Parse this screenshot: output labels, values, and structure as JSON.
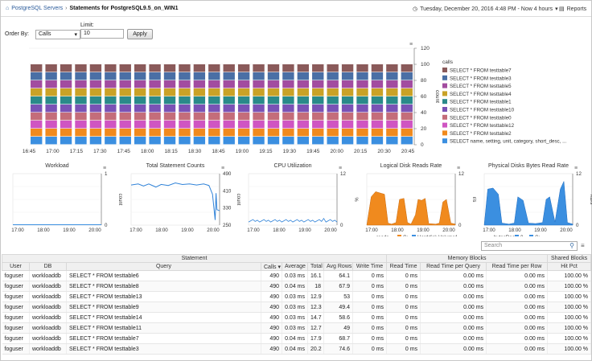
{
  "breadcrumb": {
    "root": "PostgreSQL Servers",
    "separator": "›",
    "current": "Statements for PostgreSQL9.5_on_WIN1"
  },
  "time_range": {
    "text": "Tuesday, December 20, 2016 4:48 PM - Now 4 hours"
  },
  "reports": {
    "label": "Reports"
  },
  "filter": {
    "order_by_label": "Order By:",
    "order_by_value": "Calls",
    "limit_label": "Limit:",
    "limit_value": "10",
    "apply_label": "Apply"
  },
  "search": {
    "placeholder": "Search"
  },
  "colors": {
    "series": [
      "#8a5a5a",
      "#4a6fa5",
      "#a24ca0",
      "#c9a227",
      "#2a8a8a",
      "#7a52b5",
      "#c46d7a",
      "#cf55c2",
      "#f08a1e",
      "#3b8fe0"
    ]
  },
  "main_chart": {
    "chart_data": {
      "type": "bar",
      "stacked": true,
      "ylabel": "count",
      "ylim": [
        0,
        120
      ],
      "yticks": [
        "0",
        "20",
        "40",
        "60",
        "80",
        "100",
        "120"
      ],
      "xticks": [
        "16:45",
        "17:00",
        "17:15",
        "17:30",
        "17:45",
        "18:00",
        "18:15",
        "18:30",
        "18:45",
        "19:00",
        "19:15",
        "19:30",
        "19:45",
        "20:00",
        "20:15",
        "20:30",
        "20:45"
      ],
      "legend_title": "calls",
      "series": [
        {
          "name": "SELECT * FROM testtable7",
          "value": 10
        },
        {
          "name": "SELECT * FROM testtable3",
          "value": 10
        },
        {
          "name": "SELECT * FROM testtable5",
          "value": 10
        },
        {
          "name": "SELECT * FROM testtable4",
          "value": 10
        },
        {
          "name": "SELECT * FROM testtable1",
          "value": 10
        },
        {
          "name": "SELECT * FROM testtable10",
          "value": 10
        },
        {
          "name": "SELECT * FROM testtable0",
          "value": 10
        },
        {
          "name": "SELECT * FROM testtable12",
          "value": 10
        },
        {
          "name": "SELECT * FROM testtable2",
          "value": 10
        },
        {
          "name": "SELECT name, setting, unit, category, short_desc, ...",
          "value": 10
        }
      ],
      "bar_count": 26,
      "legend_position": "right"
    }
  },
  "small_charts": [
    {
      "title": "Workload",
      "ylabel": "count",
      "yticks": [
        "0",
        "1"
      ],
      "xticks": [
        "17:00",
        "18:00",
        "19:00",
        "20:00"
      ]
    },
    {
      "title": "Total Statement Counts",
      "ylabel": "count",
      "yticks": [
        "250",
        "330",
        "410",
        "490"
      ],
      "xticks": [
        "17:00",
        "18:00",
        "19:00",
        "20:00"
      ]
    },
    {
      "title": "CPU Utilization",
      "ylabel": "%",
      "yticks": [
        "0",
        "12"
      ],
      "xticks": [
        "17:00",
        "18:00",
        "19:00",
        "20:00"
      ]
    },
    {
      "title": "Logical Disk Reads Rate",
      "ylabel": "r/s",
      "yticks": [
        "0",
        "12"
      ],
      "xticks": [
        "17:00",
        "18:00",
        "19:00",
        "20:00"
      ],
      "legend": [
        "reads",
        "C:",
        "Harddisk Volume1"
      ]
    },
    {
      "title": "Physical Disks Bytes Read Rate",
      "ylabel": "KB/s",
      "yticks": [
        "0",
        "12"
      ],
      "xticks": [
        "17:00",
        "18:00",
        "19:00",
        "20:00"
      ],
      "legend": [
        "bytesRead",
        "0",
        "C:"
      ]
    }
  ],
  "table": {
    "group_headers": [
      "Statement",
      "Memory Blocks",
      "Shared Blocks"
    ],
    "headers": [
      "User",
      "DB",
      "Query",
      "Calls ▾",
      "Average",
      "Total",
      "Avg Rows",
      "Write Time",
      "Read Time",
      "Read Time per Query",
      "Read Time per Row",
      "Hit Pct"
    ],
    "rows": [
      [
        "foguser",
        "workloaddb",
        "SELECT * FROM testtable6",
        "490",
        "0.03 ms",
        "16.1",
        "64.1",
        "0 ms",
        "0 ms",
        "0.00 ms",
        "0.00 ms",
        "100.00 %"
      ],
      [
        "foguser",
        "workloaddb",
        "SELECT * FROM testtable8",
        "490",
        "0.04 ms",
        "18",
        "67.9",
        "0 ms",
        "0 ms",
        "0.00 ms",
        "0.00 ms",
        "100.00 %"
      ],
      [
        "foguser",
        "workloaddb",
        "SELECT * FROM testtable13",
        "490",
        "0.03 ms",
        "12.9",
        "53",
        "0 ms",
        "0 ms",
        "0.00 ms",
        "0.00 ms",
        "100.00 %"
      ],
      [
        "foguser",
        "workloaddb",
        "SELECT * FROM testtable9",
        "490",
        "0.03 ms",
        "12.3",
        "49.4",
        "0 ms",
        "0 ms",
        "0.00 ms",
        "0.00 ms",
        "100.00 %"
      ],
      [
        "foguser",
        "workloaddb",
        "SELECT * FROM testtable14",
        "490",
        "0.03 ms",
        "14.7",
        "58.6",
        "0 ms",
        "0 ms",
        "0.00 ms",
        "0.00 ms",
        "100.00 %"
      ],
      [
        "foguser",
        "workloaddb",
        "SELECT * FROM testtable11",
        "490",
        "0.03 ms",
        "12.7",
        "49",
        "0 ms",
        "0 ms",
        "0.00 ms",
        "0.00 ms",
        "100.00 %"
      ],
      [
        "foguser",
        "workloaddb",
        "SELECT * FROM testtable7",
        "490",
        "0.04 ms",
        "17.9",
        "68.7",
        "0 ms",
        "0 ms",
        "0.00 ms",
        "0.00 ms",
        "100.00 %"
      ],
      [
        "foguser",
        "workloaddb",
        "SELECT * FROM testtable3",
        "490",
        "0.04 ms",
        "20.2",
        "74.6",
        "0 ms",
        "0 ms",
        "0.00 ms",
        "0.00 ms",
        "100.00 %"
      ]
    ]
  }
}
